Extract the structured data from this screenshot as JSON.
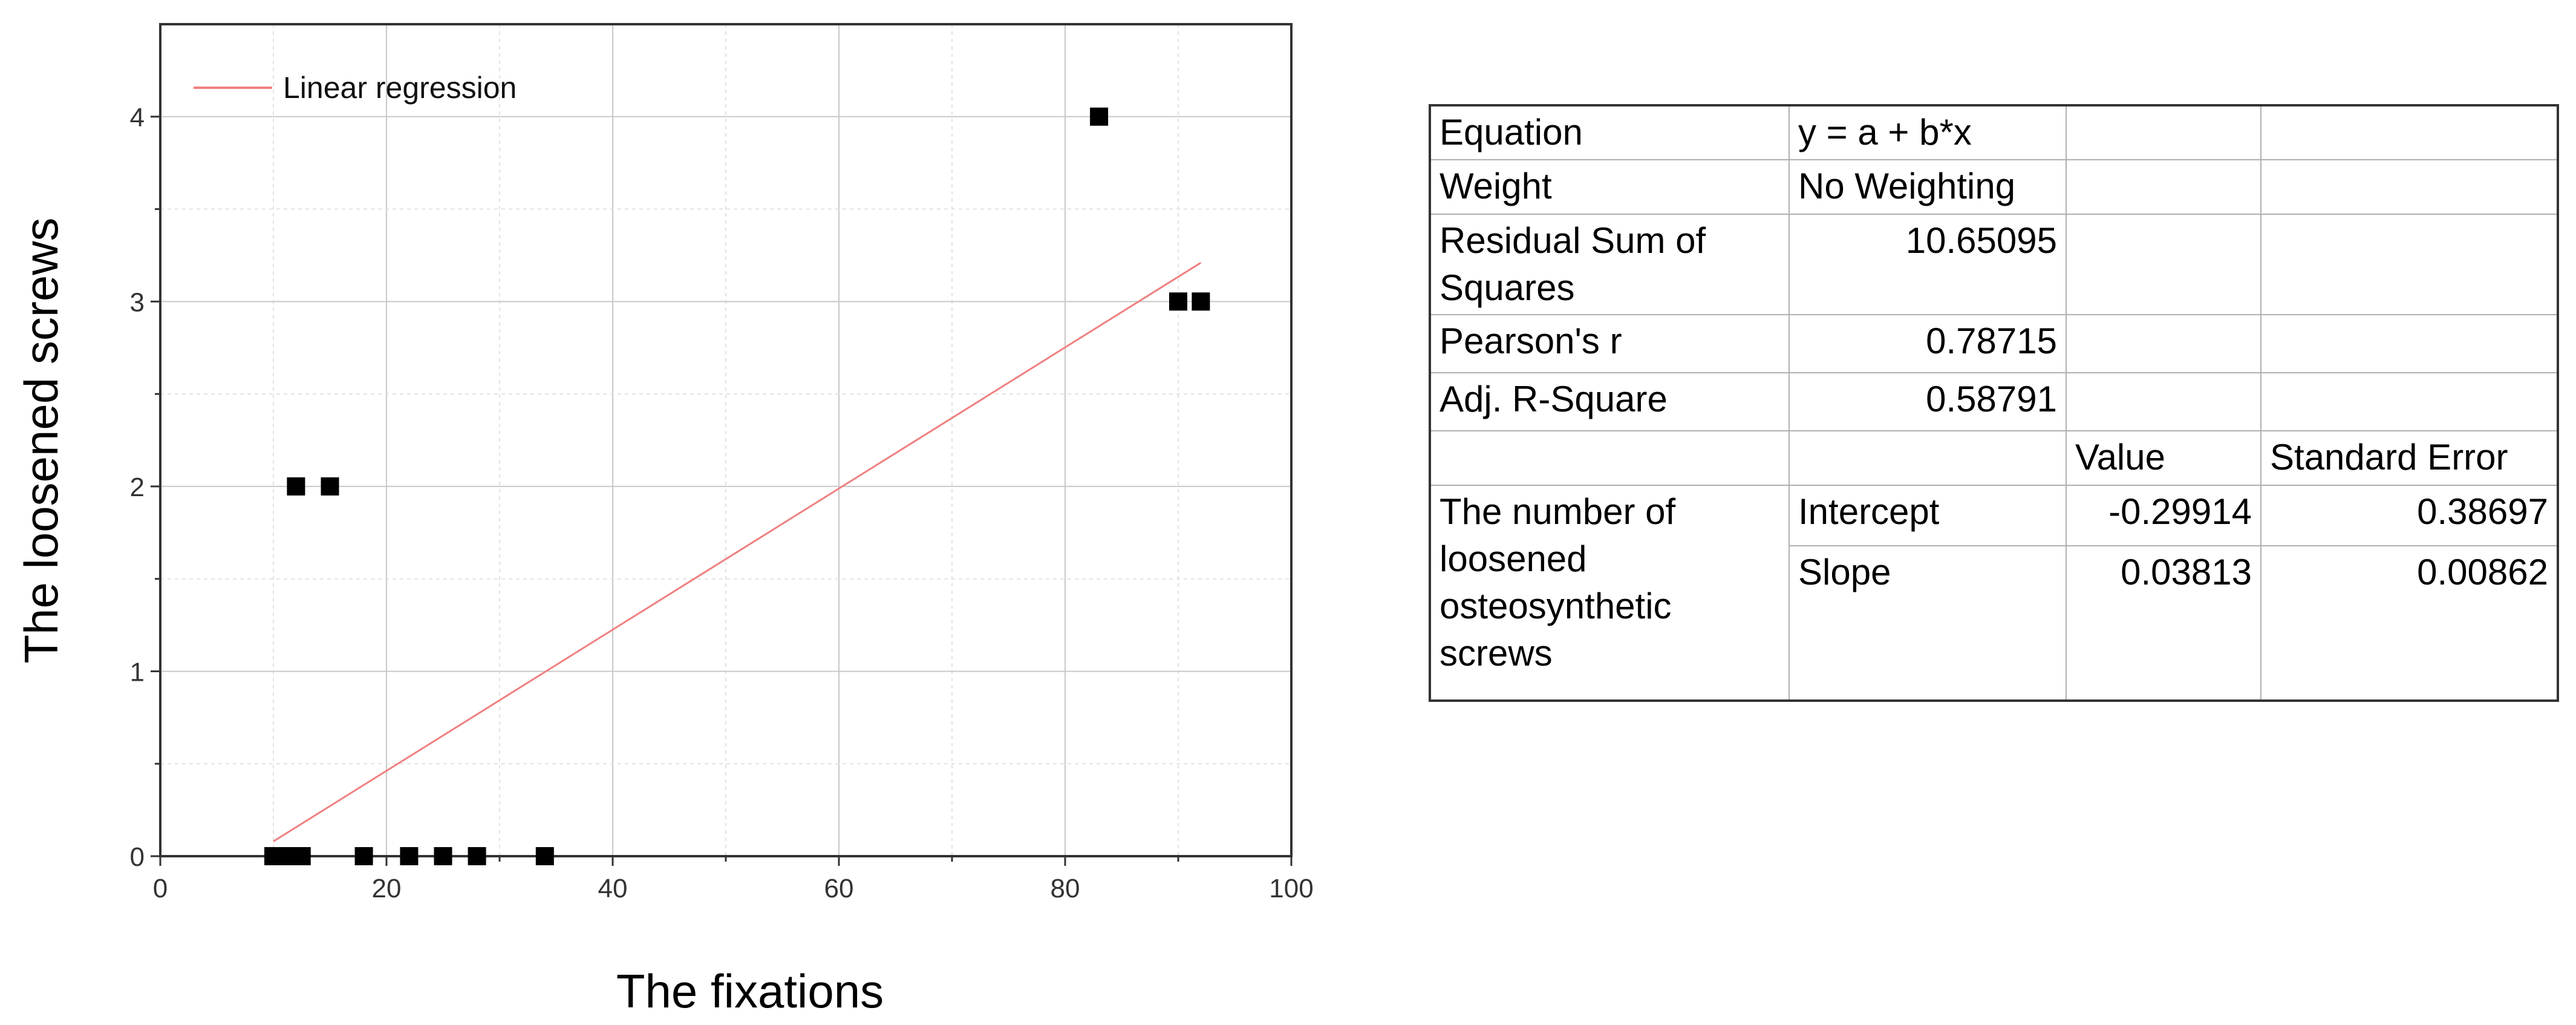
{
  "chart_data": {
    "type": "scatter",
    "xlabel": "The fixations",
    "ylabel": "The loosened screws",
    "xlim": [
      0,
      100
    ],
    "ylim": [
      0,
      4.5
    ],
    "x_ticks": [
      "0",
      "20",
      "40",
      "60",
      "80",
      "100"
    ],
    "y_ticks": [
      "0",
      "1",
      "2",
      "3",
      "4"
    ],
    "grid": true,
    "legend_position": "top-left",
    "legend": [
      "Linear regression"
    ],
    "points": [
      {
        "x": 10,
        "y": 0
      },
      {
        "x": 11,
        "y": 0
      },
      {
        "x": 12,
        "y": 0
      },
      {
        "x": 12.5,
        "y": 0
      },
      {
        "x": 18,
        "y": 0
      },
      {
        "x": 22,
        "y": 0
      },
      {
        "x": 25,
        "y": 0
      },
      {
        "x": 28,
        "y": 0
      },
      {
        "x": 34,
        "y": 0
      },
      {
        "x": 12,
        "y": 2
      },
      {
        "x": 15,
        "y": 2
      },
      {
        "x": 83,
        "y": 4
      },
      {
        "x": 90,
        "y": 3
      },
      {
        "x": 92,
        "y": 3
      }
    ],
    "fit_line": {
      "name": "Linear regression",
      "x": [
        10,
        92
      ],
      "y": [
        0.08,
        3.21
      ],
      "color": "#f08080"
    },
    "marker_color": "#000000"
  },
  "stats_table": {
    "rows": [
      [
        "Equation",
        "y = a + b*x",
        "",
        ""
      ],
      [
        "Weight",
        "No Weighting",
        "",
        ""
      ],
      [
        "Residual Sum of Squares",
        "10.65095",
        "",
        ""
      ],
      [
        "Pearson's r",
        "0.78715",
        "",
        ""
      ],
      [
        "Adj. R-Square",
        "0.58791",
        "",
        ""
      ],
      [
        "",
        "",
        "Value",
        "Standard Error"
      ],
      [
        "The number of loosened osteosynthetic screws",
        "Intercept",
        "-0.29914",
        "0.38697"
      ],
      [
        "",
        "Slope",
        "0.03813",
        "0.00862"
      ]
    ]
  }
}
